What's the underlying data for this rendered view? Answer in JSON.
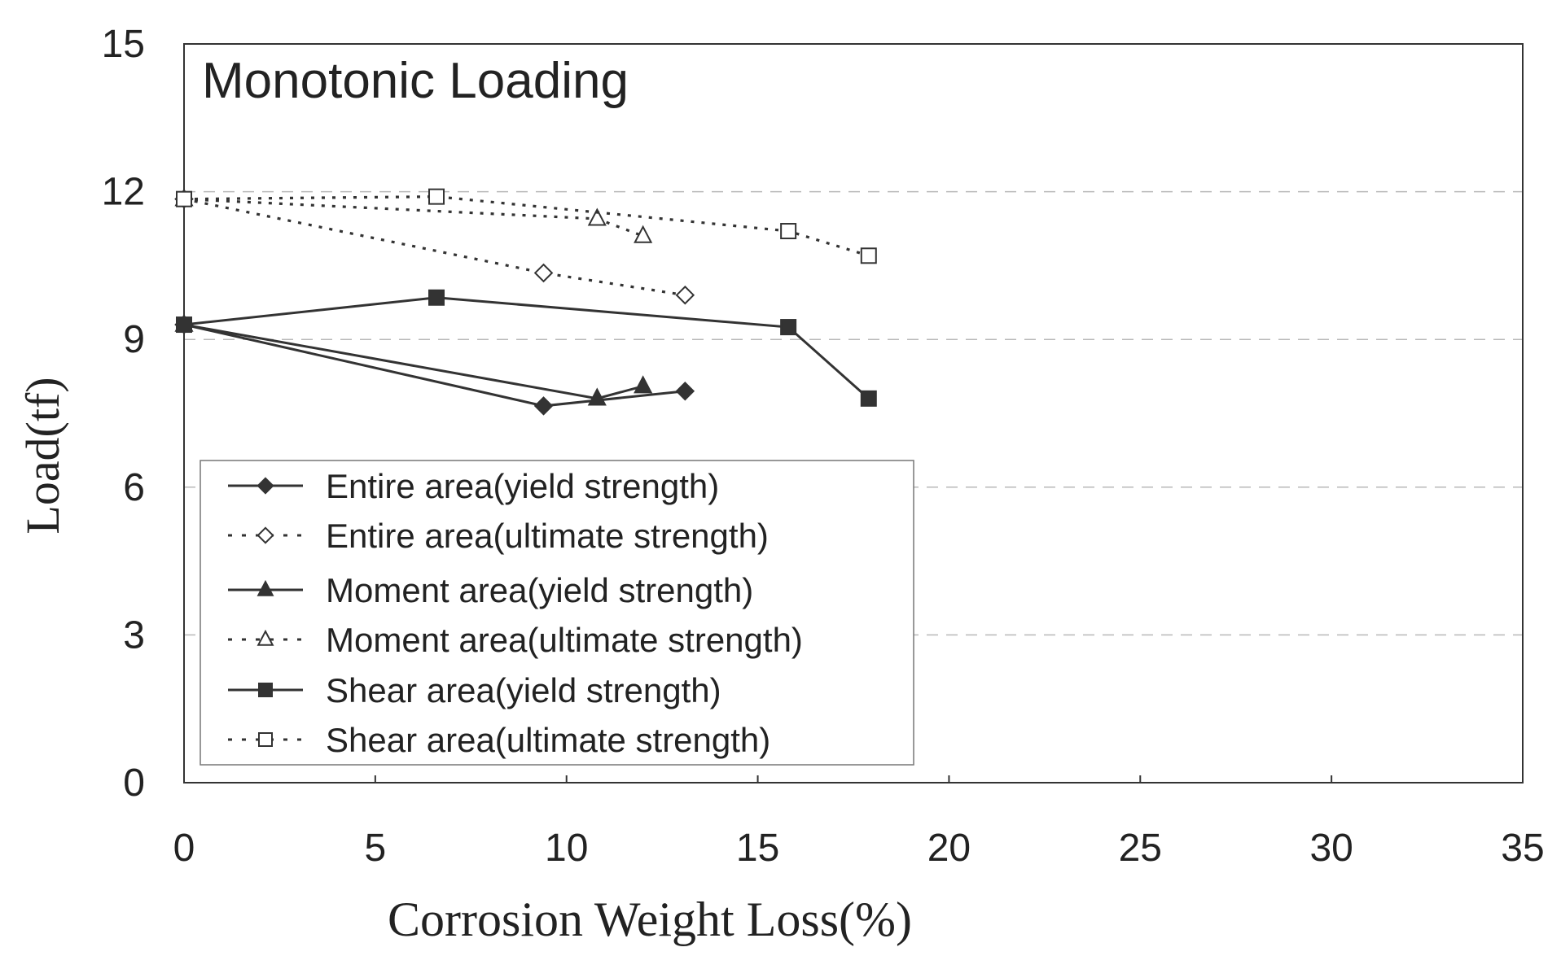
{
  "chart_data": {
    "type": "line",
    "title": "Monotonic Loading",
    "xlabel": "Corrosion Weight Loss(%)",
    "ylabel": "Load(tf)",
    "xlim": [
      0,
      35
    ],
    "ylim": [
      0,
      15
    ],
    "xticks": [
      "0",
      "5",
      "10",
      "15",
      "20",
      "25",
      "30",
      "35"
    ],
    "yticks": [
      "0",
      "3",
      "6",
      "9",
      "12",
      "15"
    ],
    "grid": "horizontal dashed",
    "legend_position": "bottom-left",
    "series": [
      {
        "name": "Entire area(yield strength)",
        "line": "solid",
        "marker": "diamond",
        "filled": true,
        "x": [
          0,
          9.4,
          13.1
        ],
        "y": [
          9.3,
          7.65,
          7.95
        ]
      },
      {
        "name": "Entire area(ultimate strength)",
        "line": "dotted",
        "marker": "diamond",
        "filled": false,
        "x": [
          0,
          9.4,
          13.1
        ],
        "y": [
          11.85,
          10.35,
          9.9
        ]
      },
      {
        "name": "Moment area(yield strength)",
        "line": "solid",
        "marker": "triangle",
        "filled": true,
        "x": [
          0,
          10.8,
          12.0
        ],
        "y": [
          9.3,
          7.8,
          8.05
        ]
      },
      {
        "name": "Moment area(ultimate strength)",
        "line": "dotted",
        "marker": "triangle",
        "filled": false,
        "x": [
          0,
          10.8,
          12.0
        ],
        "y": [
          11.85,
          11.45,
          11.1
        ]
      },
      {
        "name": "Shear area(yield strength)",
        "line": "solid",
        "marker": "square",
        "filled": true,
        "x": [
          0,
          6.6,
          15.8,
          17.9
        ],
        "y": [
          9.3,
          9.85,
          9.25,
          7.8
        ]
      },
      {
        "name": "Shear area(ultimate strength)",
        "line": "dotted",
        "marker": "square",
        "filled": false,
        "x": [
          0,
          6.6,
          15.8,
          17.9
        ],
        "y": [
          11.85,
          11.9,
          11.2,
          10.7
        ]
      }
    ]
  }
}
